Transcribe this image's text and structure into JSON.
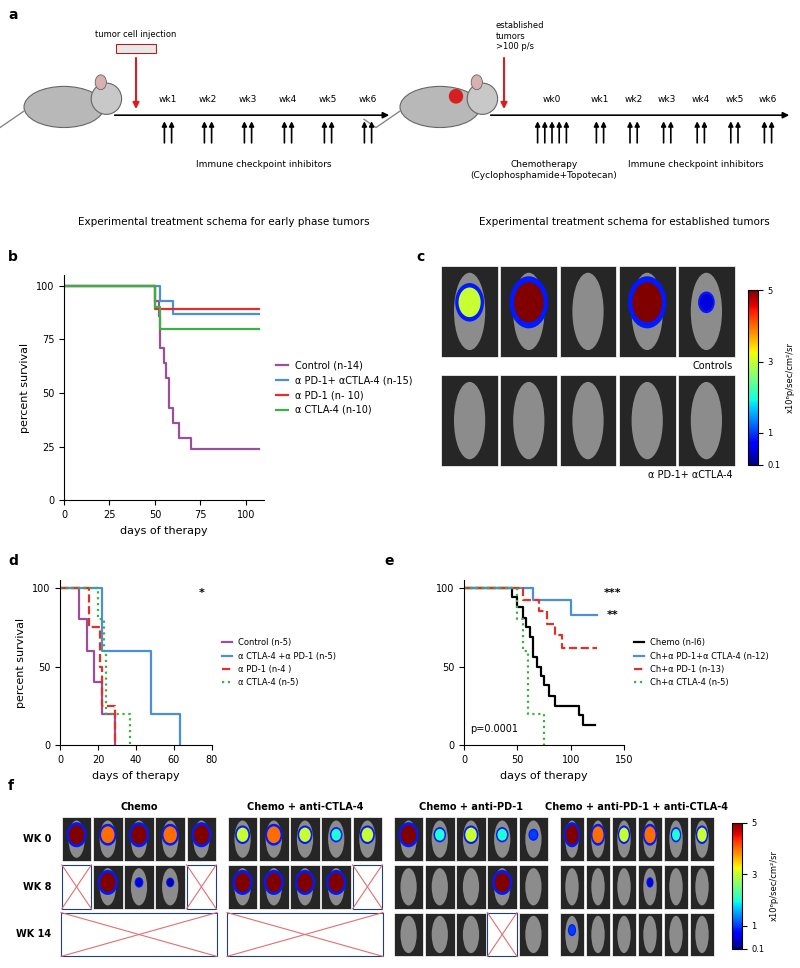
{
  "panel_labels": [
    "a",
    "b",
    "c",
    "d",
    "e",
    "f"
  ],
  "schema": {
    "early": {
      "injection": "tumor cell injection",
      "weeks": [
        "wk1",
        "wk2",
        "wk3",
        "wk4",
        "wk5",
        "wk6"
      ],
      "doses": [
        2,
        2,
        2,
        2,
        2,
        2
      ],
      "treatment": "Immune checkpoint inhibitors",
      "caption": "Experimental treatment schema for early phase tumors"
    },
    "established": {
      "start": "established\ntumors\n>100 p/s",
      "weeks": [
        "wk0",
        "wk1",
        "wk2",
        "wk3",
        "wk4",
        "wk5",
        "wk6"
      ],
      "doses": [
        5,
        2,
        2,
        2,
        2,
        2,
        2
      ],
      "chemo": "Chemotherapy\n(Cyclophosphamide+Topotecan)",
      "treatment": "Immune checkpoint inhibitors",
      "caption": "Experimental treatment schema for established tumors"
    }
  },
  "chart_data": [
    {
      "type": "step",
      "xlabel": "days of therapy",
      "ylabel": "percent survival",
      "xlim": [
        0,
        110
      ],
      "ylim": [
        0,
        105
      ],
      "xticks": [
        0,
        25,
        50,
        75,
        100
      ],
      "yticks": [
        0,
        25,
        50,
        75,
        100
      ],
      "legend": "right",
      "series": [
        {
          "name": "Control (n-14)",
          "color": "#9b4f9b",
          "line_style": "solid",
          "x": [
            0,
            50,
            52,
            53,
            55,
            56,
            58,
            60,
            63,
            70,
            107
          ],
          "values": [
            100,
            93,
            86,
            71,
            64,
            57,
            43,
            36,
            29,
            24,
            24
          ]
        },
        {
          "name": "α PD-1+ αCTLA-4 (n-15)",
          "color": "#4a90d9",
          "line_style": "solid",
          "x": [
            0,
            53,
            60,
            107
          ],
          "values": [
            100,
            93,
            87,
            87
          ]
        },
        {
          "name": "α PD-1 (n- 10)",
          "color": "#e0302a",
          "line_style": "solid",
          "x": [
            0,
            50,
            107
          ],
          "values": [
            100,
            89,
            89
          ]
        },
        {
          "name": "α CTLA-4 (n-10)",
          "color": "#3cb043",
          "line_style": "solid",
          "x": [
            0,
            50,
            53,
            107
          ],
          "values": [
            100,
            90,
            80,
            80
          ]
        }
      ]
    },
    {
      "type": "step",
      "xlabel": "days of therapy",
      "ylabel": "percent survival",
      "xlim": [
        0,
        80
      ],
      "ylim": [
        0,
        105
      ],
      "xticks": [
        0,
        20,
        40,
        60,
        80
      ],
      "yticks": [
        0,
        50,
        100
      ],
      "legend": "right",
      "significance": [
        "*"
      ],
      "series": [
        {
          "name": "Control (n-5)",
          "color": "#9b4f9b",
          "line_style": "solid",
          "x": [
            0,
            10,
            14,
            18,
            22,
            29
          ],
          "values": [
            100,
            80,
            60,
            40,
            20,
            0
          ]
        },
        {
          "name": "α CTLA-4 +α PD-1 (n-5)",
          "color": "#4a90d9",
          "line_style": "solid",
          "x": [
            0,
            22,
            48,
            63
          ],
          "values": [
            100,
            60,
            20,
            0
          ]
        },
        {
          "name": "α PD-1 (n-4 )",
          "color": "#e0302a",
          "line_style": "dashed",
          "x": [
            0,
            15,
            21,
            22,
            29
          ],
          "values": [
            100,
            75,
            50,
            25,
            0
          ]
        },
        {
          "name": "α CTLA-4 (n-5)",
          "color": "#3cb043",
          "line_style": "dotted",
          "x": [
            0,
            20,
            23,
            24,
            37
          ],
          "values": [
            100,
            80,
            60,
            20,
            0
          ]
        }
      ]
    },
    {
      "type": "step",
      "xlabel": "days of therapy",
      "xlim": [
        0,
        150
      ],
      "ylim": [
        0,
        105
      ],
      "xticks": [
        0,
        50,
        100,
        150
      ],
      "yticks": [
        0,
        50,
        100
      ],
      "legend": "right",
      "significance": [
        "***",
        "**"
      ],
      "p_value": "p=0.0001",
      "series": [
        {
          "name": "Chemo (n-l6)",
          "color": "#000000",
          "line_style": "solid",
          "x": [
            0,
            45,
            50,
            55,
            58,
            62,
            65,
            68,
            72,
            75,
            80,
            85,
            108,
            112,
            123
          ],
          "values": [
            100,
            94,
            88,
            81,
            75,
            69,
            56,
            50,
            44,
            38,
            31,
            25,
            19,
            13,
            13
          ]
        },
        {
          "name": "Ch+α PD-1+α CTLA-4 (n-12)",
          "color": "#4a90d9",
          "line_style": "solid",
          "x": [
            0,
            65,
            100,
            125
          ],
          "values": [
            100,
            92,
            83,
            83
          ]
        },
        {
          "name": "Ch+α PD-1 (n-13)",
          "color": "#e0302a",
          "line_style": "dashed",
          "x": [
            0,
            55,
            70,
            78,
            85,
            92,
            125
          ],
          "values": [
            100,
            92,
            85,
            77,
            70,
            62,
            62
          ]
        },
        {
          "name": "Ch+α CTLA-4 (n-5)",
          "color": "#3cb043",
          "line_style": "dotted",
          "x": [
            0,
            50,
            55,
            60,
            75
          ],
          "values": [
            100,
            80,
            60,
            20,
            0
          ]
        }
      ]
    }
  ],
  "images": {
    "c": {
      "rows": [
        {
          "label": "Controls",
          "signal": [
            3,
            5,
            0,
            5,
            0.5
          ]
        },
        {
          "label": "α PD-1+ αCTLA-4",
          "signal": [
            0,
            0,
            0,
            0,
            0
          ]
        }
      ],
      "colorbar": {
        "label": "x10⁶p/sec/cm²/sr",
        "range": [
          0.1,
          5
        ],
        "ticks": [
          0.1,
          1,
          3,
          5
        ]
      }
    },
    "f": {
      "columns": [
        {
          "title": "Chemo",
          "signal": [
            [
              5,
              4,
              5,
              4,
              5
            ],
            [
              null,
              5,
              0.5,
              0.3,
              null
            ],
            [
              null,
              null,
              null,
              null,
              null
            ]
          ]
        },
        {
          "title": "Chemo + anti-CTLA-4",
          "signal": [
            [
              3,
              4,
              3,
              2,
              3
            ],
            [
              5,
              5,
              5,
              5,
              null
            ],
            [
              null,
              null,
              null,
              null,
              null
            ]
          ]
        },
        {
          "title": "Chemo + anti-PD-1",
          "signal": [
            [
              5,
              2,
              3,
              2,
              1
            ],
            [
              0,
              0,
              0,
              5,
              0
            ],
            [
              0,
              0,
              0,
              null,
              0
            ]
          ]
        },
        {
          "title": "Chemo + anti-PD-1 + anti-CTLA-4",
          "signal": [
            [
              5,
              4,
              3,
              4,
              2,
              3
            ],
            [
              0,
              0,
              0,
              0.5,
              0,
              0
            ],
            [
              1,
              0,
              0,
              0,
              0,
              0
            ]
          ]
        }
      ],
      "row_labels": [
        "WK 0",
        "WK 8",
        "WK 14"
      ],
      "colorbar": {
        "label": "x10⁶p/sec/cm²/sr",
        "range": [
          0.1,
          5
        ],
        "ticks": [
          0.1,
          1,
          3,
          5
        ]
      }
    }
  }
}
